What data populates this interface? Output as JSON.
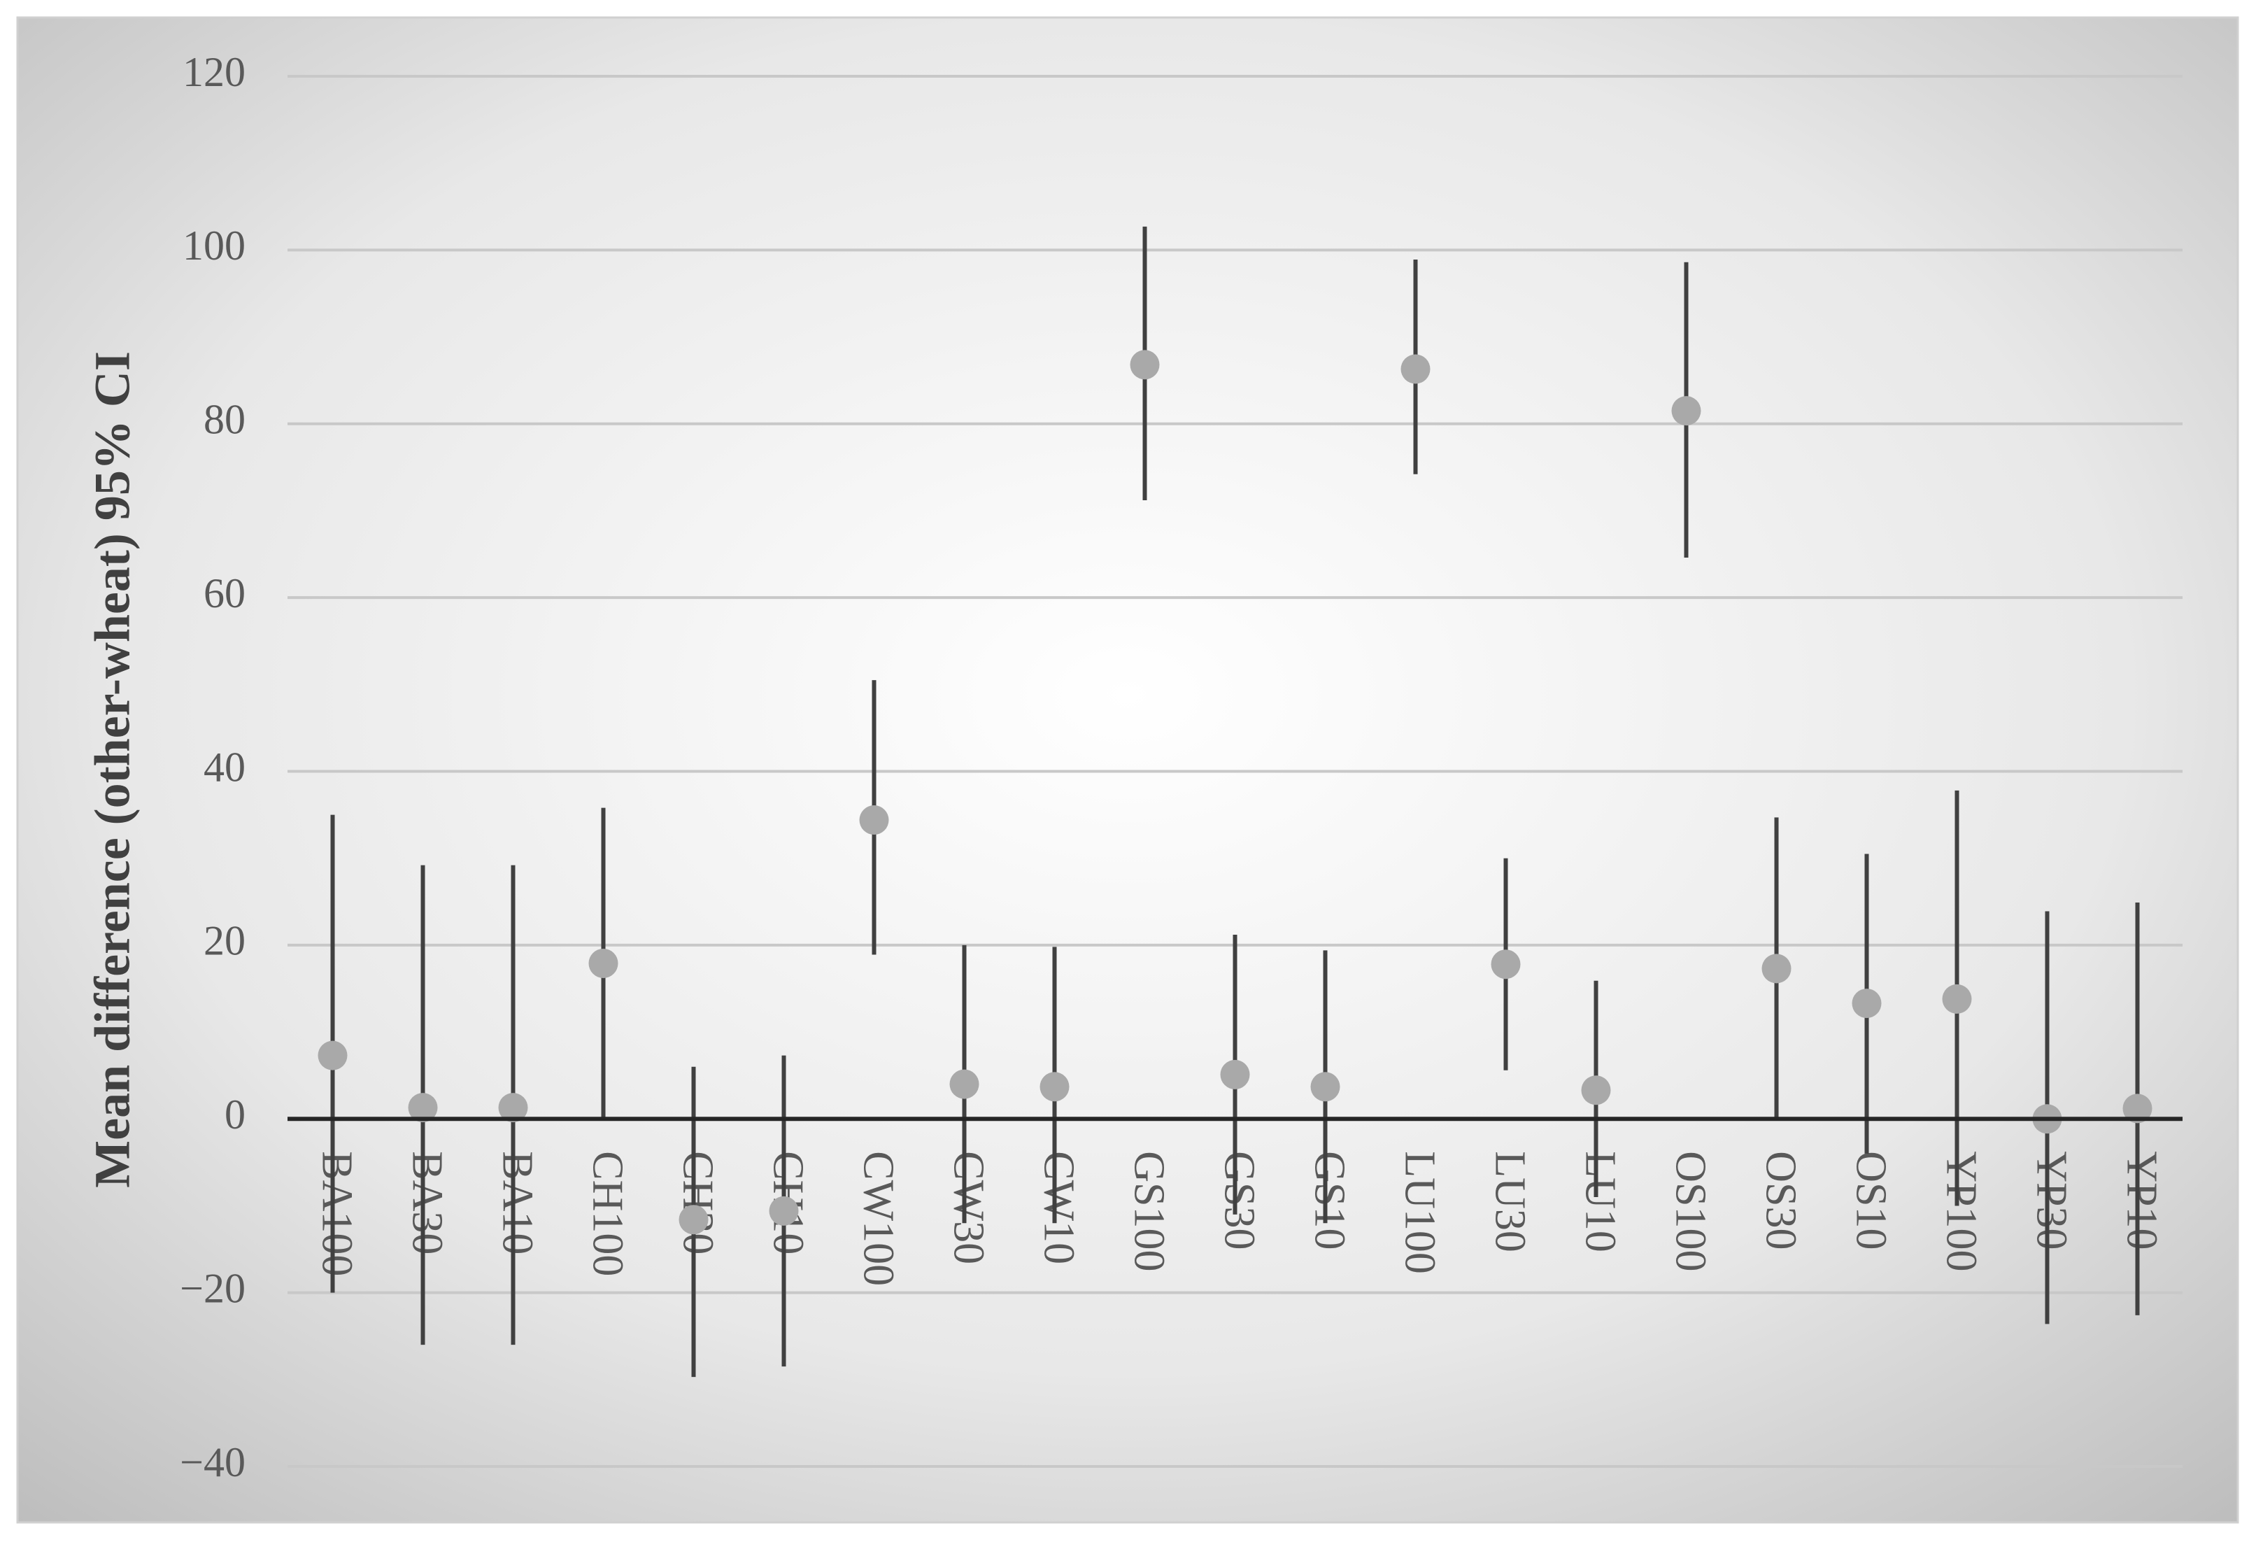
{
  "chart_data": {
    "type": "errorbar",
    "y_label": "Mean difference (other-wheat) 95% CI",
    "categories": [
      "BA100",
      "BA30",
      "BA10",
      "CH100",
      "CH30",
      "CH10",
      "CW100",
      "CW30",
      "CW10",
      "GS100",
      "GS30",
      "GS10",
      "LU100",
      "LU30",
      "LU10",
      "OS100",
      "OS30",
      "OS10",
      "YP100",
      "YP30",
      "YP10"
    ],
    "values": [
      7.3,
      1.3,
      1.3,
      17.9,
      -11.6,
      -10.6,
      34.4,
      4,
      3.7,
      86.8,
      5.1,
      3.7,
      86.3,
      17.8,
      3.3,
      81.5,
      17.3,
      13.3,
      13.8,
      0,
      1.2
    ],
    "lower": [
      -20,
      -26,
      -26,
      0,
      -29.7,
      -28.5,
      18.9,
      -12,
      -12,
      71.2,
      -11,
      -12,
      74.2,
      5.6,
      -9,
      64.6,
      0,
      -4,
      -10,
      -23.6,
      -22.6
    ],
    "upper": [
      35,
      29.2,
      29.2,
      35.8,
      6,
      7.3,
      50.5,
      20,
      19.8,
      102.7,
      21.2,
      19.4,
      98.9,
      30,
      15.9,
      98.6,
      34.7,
      30.5,
      37.8,
      23.9,
      24.9
    ],
    "point_color": "#a9a9a9",
    "bar_color": "#404040",
    "ylim": [
      -40,
      120
    ],
    "yticks": [
      {
        "value": -40,
        "label": "−40"
      },
      {
        "value": -20,
        "label": "−20"
      },
      0,
      20,
      40,
      60,
      80,
      100,
      120
    ],
    "grid": true
  }
}
